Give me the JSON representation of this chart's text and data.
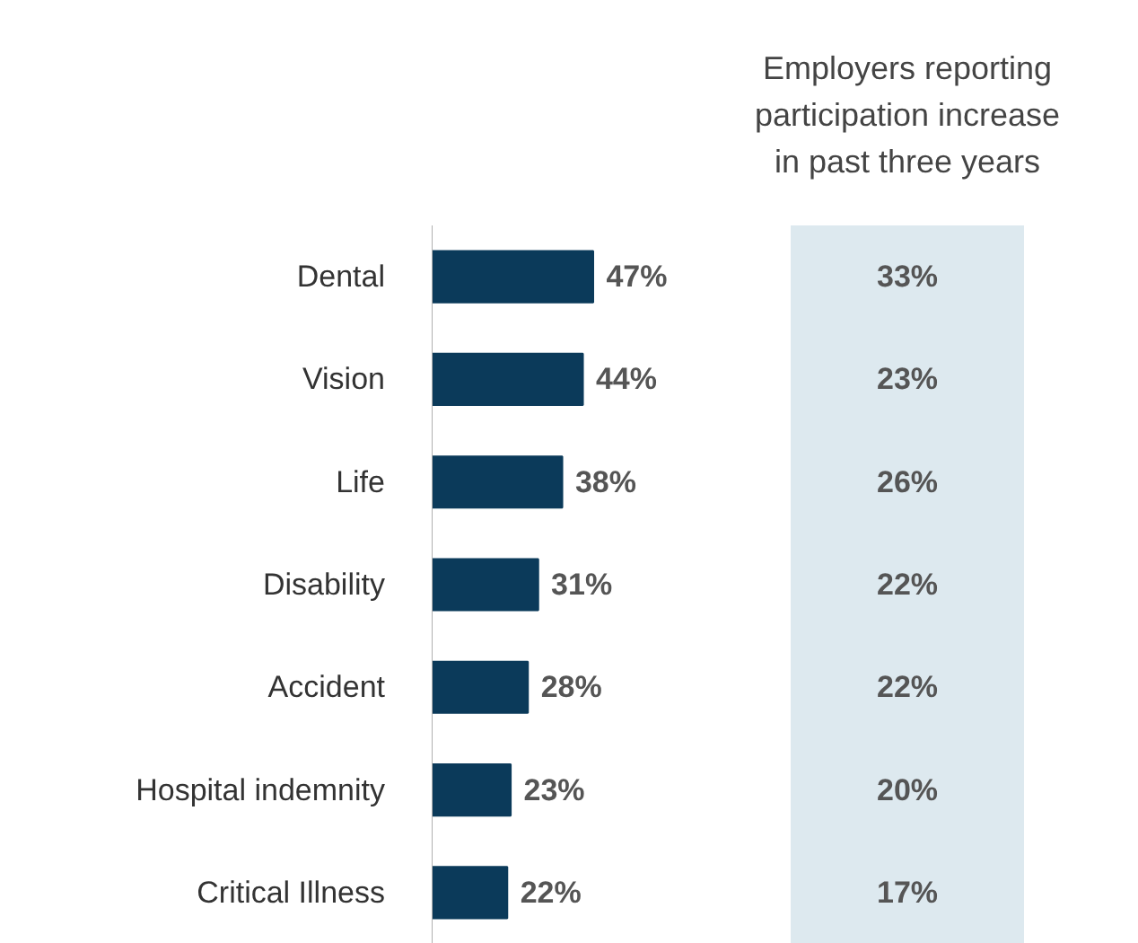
{
  "chart_data": [
    {
      "type": "bar",
      "orientation": "horizontal",
      "categories": [
        "Dental",
        "Vision",
        "Life",
        "Disability",
        "Accident",
        "Hospital indemnity",
        "Critical Illness"
      ],
      "values": [
        47,
        44,
        38,
        31,
        28,
        23,
        22
      ],
      "color": "#0b3a5a",
      "data_labels": true,
      "value_labels": [
        "47%",
        "44%",
        "38%",
        "31%",
        "28%",
        "23%",
        "22%"
      ],
      "grid": false
    },
    {
      "type": "other",
      "title": "Employers reporting\nparticipation increase\nin past three years",
      "annotations": [
        "33%",
        "23%",
        "26%",
        "22%",
        "22%",
        "20%",
        "17%"
      ],
      "color": "#dde9ef"
    }
  ]
}
